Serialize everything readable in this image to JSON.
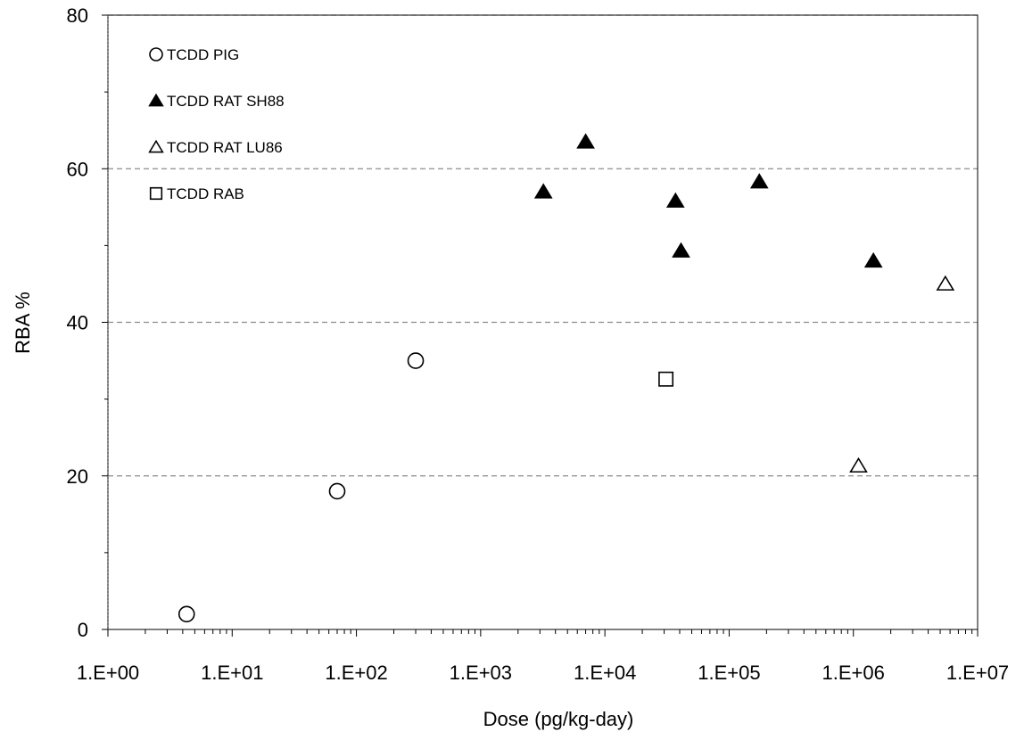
{
  "chart_data": {
    "type": "scatter",
    "xlabel": "Dose (pg/kg-day)",
    "ylabel": "RBA %",
    "x_scale": "log",
    "xlim": [
      1,
      10000000
    ],
    "ylim": [
      0,
      80
    ],
    "x_ticks": [
      {
        "value": 1,
        "label": "1.E+00"
      },
      {
        "value": 10,
        "label": "1.E+01"
      },
      {
        "value": 100,
        "label": "1.E+02"
      },
      {
        "value": 1000,
        "label": "1.E+03"
      },
      {
        "value": 10000,
        "label": "1.E+04"
      },
      {
        "value": 100000,
        "label": "1.E+05"
      },
      {
        "value": 1000000,
        "label": "1.E+06"
      },
      {
        "value": 10000000,
        "label": "1.E+07"
      }
    ],
    "y_ticks": [
      {
        "value": 0,
        "label": "0"
      },
      {
        "value": 20,
        "label": "20"
      },
      {
        "value": 40,
        "label": "40"
      },
      {
        "value": 60,
        "label": "60"
      },
      {
        "value": 80,
        "label": "80"
      }
    ],
    "grid": "horizontal dashed",
    "legend_position": "top-left",
    "series": [
      {
        "name": "TCDD PIG",
        "marker": "circle-open",
        "points": [
          {
            "x": 4.3,
            "y": 2
          },
          {
            "x": 70,
            "y": 18
          },
          {
            "x": 300,
            "y": 35
          }
        ]
      },
      {
        "name": "TCDD RAT SH88",
        "marker": "triangle-filled",
        "points": [
          {
            "x": 3200,
            "y": 57
          },
          {
            "x": 7000,
            "y": 63.5
          },
          {
            "x": 37000,
            "y": 55.8
          },
          {
            "x": 41000,
            "y": 49.3
          },
          {
            "x": 175000,
            "y": 58.3
          },
          {
            "x": 1450000,
            "y": 48
          }
        ]
      },
      {
        "name": "TCDD RAT LU86",
        "marker": "triangle-open",
        "points": [
          {
            "x": 1100000,
            "y": 21.3
          },
          {
            "x": 5500000,
            "y": 45
          }
        ]
      },
      {
        "name": "TCDD RAB",
        "marker": "square-open",
        "points": [
          {
            "x": 31000,
            "y": 32.6
          }
        ]
      }
    ]
  }
}
